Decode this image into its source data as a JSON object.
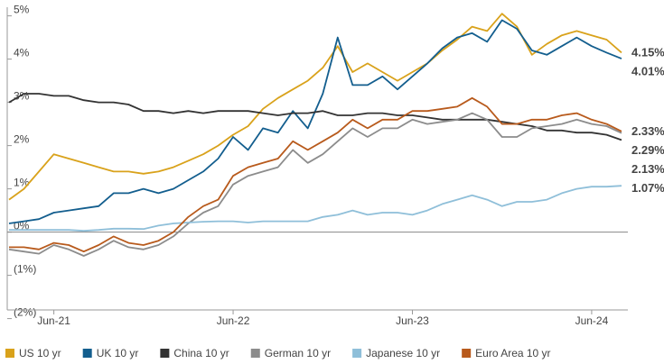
{
  "chart_data": {
    "type": "line",
    "x": [
      "Mar-21",
      "Apr-21",
      "May-21",
      "Jun-21",
      "Jul-21",
      "Aug-21",
      "Sep-21",
      "Oct-21",
      "Nov-21",
      "Dec-21",
      "Jan-22",
      "Feb-22",
      "Mar-22",
      "Apr-22",
      "May-22",
      "Jun-22",
      "Jul-22",
      "Aug-22",
      "Sep-22",
      "Oct-22",
      "Nov-22",
      "Dec-22",
      "Jan-23",
      "Feb-23",
      "Mar-23",
      "Apr-23",
      "May-23",
      "Jun-23",
      "Jul-23",
      "Aug-23",
      "Sep-23",
      "Oct-23",
      "Nov-23",
      "Dec-23",
      "Jan-24",
      "Feb-24",
      "Mar-24",
      "Apr-24",
      "May-24",
      "Jun-24",
      "Jul-24",
      "Aug-24"
    ],
    "xticks": [
      "Jun-21",
      "Jun-22",
      "Jun-23",
      "Jun-24"
    ],
    "ylim": [
      -1.8,
      5.2
    ],
    "yticks": [
      {
        "value": 5,
        "label": "5%"
      },
      {
        "value": 4,
        "label": "4%"
      },
      {
        "value": 3,
        "label": "3%"
      },
      {
        "value": 2,
        "label": "2%"
      },
      {
        "value": 1,
        "label": "1%"
      },
      {
        "value": 0,
        "label": "0%"
      },
      {
        "value": -1,
        "label": "(1%)"
      },
      {
        "value": -2,
        "label": "(2%)"
      }
    ],
    "series": [
      {
        "name": "US 10 yr",
        "color": "#d9a21b",
        "end_label": "4.15%",
        "values": [
          0.75,
          1.0,
          1.4,
          1.8,
          1.7,
          1.6,
          1.5,
          1.4,
          1.4,
          1.35,
          1.4,
          1.5,
          1.65,
          1.8,
          2.0,
          2.25,
          2.45,
          2.85,
          3.1,
          3.3,
          3.5,
          3.8,
          4.3,
          3.7,
          3.9,
          3.7,
          3.5,
          3.7,
          3.9,
          4.2,
          4.45,
          4.75,
          4.65,
          5.05,
          4.75,
          4.1,
          4.35,
          4.55,
          4.65,
          4.55,
          4.45,
          4.15
        ]
      },
      {
        "name": "UK 10 yr",
        "color": "#135e8e",
        "end_label": "4.01%",
        "values": [
          0.2,
          0.25,
          0.3,
          0.45,
          0.5,
          0.55,
          0.6,
          0.9,
          0.9,
          1.0,
          0.9,
          1.0,
          1.2,
          1.4,
          1.7,
          2.2,
          1.9,
          2.4,
          2.3,
          2.8,
          2.4,
          3.2,
          4.5,
          3.4,
          3.4,
          3.6,
          3.3,
          3.6,
          3.9,
          4.25,
          4.5,
          4.6,
          4.4,
          4.9,
          4.7,
          4.2,
          4.1,
          4.3,
          4.5,
          4.3,
          4.15,
          4.01
        ]
      },
      {
        "name": "China 10 yr",
        "color": "#333333",
        "end_label": "2.13%",
        "values": [
          3.0,
          3.2,
          3.2,
          3.15,
          3.15,
          3.05,
          3.0,
          3.0,
          2.95,
          2.8,
          2.8,
          2.75,
          2.8,
          2.75,
          2.8,
          2.8,
          2.8,
          2.75,
          2.7,
          2.75,
          2.75,
          2.8,
          2.7,
          2.7,
          2.75,
          2.75,
          2.7,
          2.7,
          2.65,
          2.6,
          2.6,
          2.6,
          2.6,
          2.55,
          2.5,
          2.45,
          2.35,
          2.35,
          2.3,
          2.3,
          2.25,
          2.13
        ]
      },
      {
        "name": "German 10 yr",
        "color": "#8c8c8c",
        "end_label": "2.29%",
        "values": [
          -0.4,
          -0.45,
          -0.5,
          -0.3,
          -0.4,
          -0.55,
          -0.4,
          -0.2,
          -0.35,
          -0.4,
          -0.3,
          -0.1,
          0.2,
          0.45,
          0.6,
          1.1,
          1.3,
          1.4,
          1.5,
          1.9,
          1.6,
          1.8,
          2.1,
          2.4,
          2.2,
          2.4,
          2.4,
          2.6,
          2.5,
          2.55,
          2.6,
          2.75,
          2.6,
          2.2,
          2.2,
          2.4,
          2.45,
          2.5,
          2.6,
          2.5,
          2.45,
          2.29
        ]
      },
      {
        "name": "Japanese 10 yr",
        "color": "#8fbfd9",
        "end_label": "1.07%",
        "values": [
          0.05,
          0.05,
          0.05,
          0.05,
          0.05,
          0.03,
          0.05,
          0.08,
          0.08,
          0.07,
          0.15,
          0.2,
          0.22,
          0.24,
          0.25,
          0.25,
          0.22,
          0.25,
          0.25,
          0.25,
          0.25,
          0.35,
          0.4,
          0.5,
          0.4,
          0.45,
          0.45,
          0.4,
          0.5,
          0.65,
          0.75,
          0.85,
          0.75,
          0.6,
          0.7,
          0.7,
          0.75,
          0.9,
          1.0,
          1.05,
          1.05,
          1.07
        ]
      },
      {
        "name": "Euro Area 10 yr",
        "color": "#b85a1c",
        "end_label": "2.33%",
        "values": [
          -0.35,
          -0.35,
          -0.4,
          -0.25,
          -0.3,
          -0.45,
          -0.3,
          -0.1,
          -0.25,
          -0.3,
          -0.2,
          0.0,
          0.35,
          0.6,
          0.75,
          1.3,
          1.5,
          1.6,
          1.7,
          2.1,
          1.9,
          2.1,
          2.3,
          2.6,
          2.4,
          2.6,
          2.6,
          2.8,
          2.8,
          2.85,
          2.9,
          3.1,
          2.9,
          2.5,
          2.5,
          2.6,
          2.6,
          2.7,
          2.75,
          2.6,
          2.5,
          2.33
        ]
      }
    ]
  }
}
